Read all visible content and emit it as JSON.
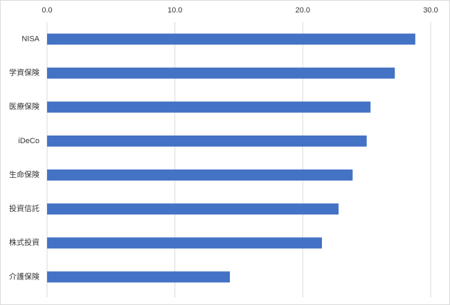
{
  "chart_data": {
    "type": "bar",
    "orientation": "horizontal",
    "categories": [
      "NISA",
      "学資保険",
      "医療保険",
      "iDeCo",
      "生命保険",
      "投資信託",
      "株式投資",
      "介護保険"
    ],
    "values": [
      28.8,
      27.2,
      25.3,
      25.0,
      23.9,
      22.8,
      21.5,
      14.3
    ],
    "color": "#4472c4",
    "xlim": [
      0,
      30
    ],
    "xticks": [
      {
        "value": 0,
        "label": "0.0"
      },
      {
        "value": 10,
        "label": "10.0"
      },
      {
        "value": 20,
        "label": "20.0"
      },
      {
        "value": 30,
        "label": "30.0"
      }
    ],
    "grid": true
  }
}
